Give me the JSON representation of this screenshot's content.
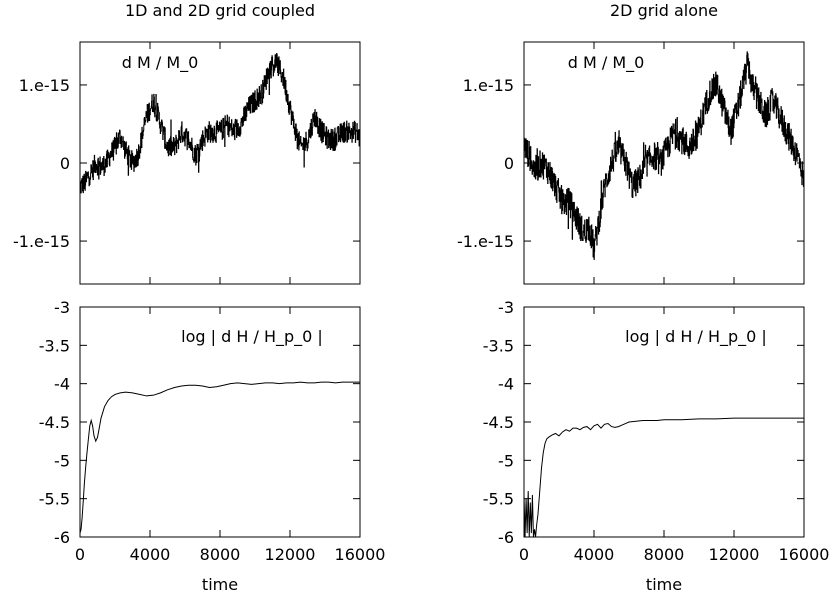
{
  "chart_data": [
    {
      "type": "line",
      "column_title": "1D and 2D grid coupled",
      "title": "d M / M_0",
      "xlabel": "",
      "ylabel": "",
      "xlim": [
        0,
        16000
      ],
      "ylim": [
        -1.55e-15,
        1.55e-15
      ],
      "x_ticks": [
        0,
        4000,
        8000,
        12000,
        16000
      ],
      "y_ticks": [
        {
          "value": 1e-15,
          "label": "1.e-15"
        },
        {
          "value": 0,
          "label": "0"
        },
        {
          "value": -1e-15,
          "label": "-1.e-15"
        }
      ],
      "show_x_tick_labels": false,
      "series": [
        {
          "style": "noisy",
          "noise": 1.4e-16,
          "x": [
            0,
            300,
            500,
            700,
            900,
            1200,
            1500,
            1700,
            2000,
            2300,
            2600,
            3000,
            3300,
            3500,
            3800,
            4200,
            4600,
            5000,
            5400,
            5800,
            6200,
            6600,
            7000,
            7300,
            7600,
            8000,
            8400,
            8800,
            9200,
            9600,
            10000,
            10400,
            10800,
            11200,
            11600,
            11900,
            12200,
            12600,
            13000,
            13400,
            13800,
            14200,
            14600,
            15000,
            15400,
            15800,
            16000
          ],
          "y": [
            -3e-16,
            -2.5e-16,
            -1.5e-16,
            -1e-16,
            0,
            -5e-17,
            0,
            1e-16,
            2e-16,
            3.5e-16,
            1.5e-16,
            0,
            1e-16,
            3e-16,
            6e-16,
            8e-16,
            5e-16,
            2e-16,
            2e-16,
            4e-16,
            3e-16,
            1e-16,
            3e-16,
            4e-16,
            4e-16,
            4e-16,
            5e-16,
            4e-16,
            5e-16,
            7e-16,
            8e-16,
            9e-16,
            1.2e-15,
            1.3e-15,
            1.1e-15,
            8e-16,
            5e-16,
            2e-16,
            3e-16,
            6e-16,
            4e-16,
            3e-16,
            3e-16,
            4e-16,
            4e-16,
            4e-16,
            3e-16
          ]
        }
      ]
    },
    {
      "type": "line",
      "column_title": "2D grid alone",
      "title": "d M / M_0",
      "xlabel": "",
      "ylabel": "",
      "xlim": [
        0,
        16000
      ],
      "ylim": [
        -1.55e-15,
        1.55e-15
      ],
      "x_ticks": [
        0,
        4000,
        8000,
        12000,
        16000
      ],
      "y_ticks": [
        {
          "value": 1e-15,
          "label": "1.e-15"
        },
        {
          "value": 0,
          "label": "0"
        },
        {
          "value": -1e-15,
          "label": "-1.e-15"
        }
      ],
      "show_x_tick_labels": false,
      "series": [
        {
          "style": "noisy",
          "noise": 1.8e-16,
          "x": [
            0,
            300,
            600,
            1000,
            1400,
            1800,
            2200,
            2600,
            3000,
            3400,
            3700,
            4000,
            4300,
            4600,
            5000,
            5400,
            5800,
            6200,
            6600,
            7000,
            7400,
            7800,
            8200,
            8600,
            9000,
            9400,
            9800,
            10200,
            10600,
            11000,
            11400,
            11800,
            12200,
            12500,
            12800,
            13000,
            13400,
            13800,
            14200,
            14600,
            15000,
            15400,
            15800,
            16000
          ],
          "y": [
            2e-16,
            1e-16,
            -1e-16,
            0,
            -1e-16,
            -3e-16,
            -5e-16,
            -5e-16,
            -7e-16,
            -9e-16,
            -8e-16,
            -1.1e-15,
            -7e-16,
            -3e-16,
            0,
            2e-16,
            0,
            -3e-16,
            -2e-16,
            0,
            1e-16,
            0,
            2e-16,
            4e-16,
            3e-16,
            2e-16,
            3e-16,
            6e-16,
            9e-16,
            1e-15,
            7e-16,
            4e-16,
            7e-16,
            1e-15,
            1.3e-15,
            1e-15,
            8e-16,
            6e-16,
            8e-16,
            6e-16,
            4e-16,
            2e-16,
            0,
            -3e-16
          ]
        }
      ]
    },
    {
      "type": "line",
      "title": "log | d H / H_p_0 |",
      "xlabel": "time",
      "ylabel": "",
      "xlim": [
        0,
        16000
      ],
      "ylim": [
        -6,
        -3
      ],
      "x_ticks": [
        0,
        4000,
        8000,
        12000,
        16000
      ],
      "y_ticks": [
        {
          "value": -3,
          "label": "-3"
        },
        {
          "value": -3.5,
          "label": "-3.5"
        },
        {
          "value": -4,
          "label": "-4"
        },
        {
          "value": -4.5,
          "label": "-4.5"
        },
        {
          "value": -5,
          "label": "-5"
        },
        {
          "value": -5.5,
          "label": "-5.5"
        },
        {
          "value": -6,
          "label": "-6"
        }
      ],
      "show_x_tick_labels": true,
      "series": [
        {
          "style": "smooth",
          "x": [
            0,
            60,
            120,
            180,
            250,
            320,
            400,
            480,
            560,
            640,
            720,
            800,
            900,
            1000,
            1100,
            1200,
            1400,
            1600,
            1800,
            2000,
            2300,
            2600,
            3000,
            3400,
            3800,
            4200,
            4600,
            5000,
            5400,
            5800,
            6200,
            6600,
            7000,
            7400,
            7800,
            8200,
            8600,
            9000,
            9400,
            9800,
            10200,
            10600,
            11000,
            11400,
            11800,
            12200,
            12600,
            13000,
            13400,
            13800,
            14200,
            14600,
            15000,
            15400,
            15800,
            16000
          ],
          "y": [
            -5.95,
            -5.9,
            -5.75,
            -5.55,
            -5.3,
            -5.1,
            -4.9,
            -4.72,
            -4.55,
            -4.48,
            -4.55,
            -4.68,
            -4.75,
            -4.7,
            -4.58,
            -4.45,
            -4.3,
            -4.22,
            -4.17,
            -4.14,
            -4.12,
            -4.11,
            -4.12,
            -4.14,
            -4.16,
            -4.15,
            -4.12,
            -4.08,
            -4.05,
            -4.03,
            -4.02,
            -4.02,
            -4.03,
            -4.05,
            -4.04,
            -4.02,
            -4.0,
            -3.99,
            -4.0,
            -4.01,
            -4.0,
            -3.99,
            -3.99,
            -4.0,
            -3.99,
            -3.99,
            -3.98,
            -3.99,
            -3.99,
            -3.98,
            -3.98,
            -3.99,
            -3.98,
            -3.98,
            -3.98,
            -3.98
          ]
        }
      ]
    },
    {
      "type": "line",
      "title": "log | d H / H_p_0 |",
      "xlabel": "time",
      "ylabel": "",
      "xlim": [
        0,
        16000
      ],
      "ylim": [
        -6,
        -3
      ],
      "x_ticks": [
        0,
        4000,
        8000,
        12000,
        16000
      ],
      "y_ticks": [
        {
          "value": -3,
          "label": "-3"
        },
        {
          "value": -3.5,
          "label": "-3.5"
        },
        {
          "value": -4,
          "label": "-4"
        },
        {
          "value": -4.5,
          "label": "-4.5"
        },
        {
          "value": -5,
          "label": "-5"
        },
        {
          "value": -5.5,
          "label": "-5.5"
        },
        {
          "value": -6,
          "label": "-6"
        }
      ],
      "show_x_tick_labels": true,
      "series": [
        {
          "style": "smooth",
          "x": [
            0,
            60,
            120,
            180,
            240,
            300,
            360,
            420,
            480,
            540,
            600,
            660,
            720,
            800,
            900,
            1000,
            1100,
            1200,
            1300,
            1400,
            1600,
            1800,
            2000,
            2200,
            2400,
            2600,
            2800,
            3000,
            3200,
            3400,
            3600,
            3800,
            4000,
            4200,
            4400,
            4600,
            4800,
            5000,
            5200,
            5400,
            5600,
            5800,
            6000,
            6400,
            6800,
            7200,
            7600,
            8000,
            9000,
            10000,
            11000,
            12000,
            13000,
            14000,
            15000,
            16000
          ],
          "y": [
            -5.45,
            -6.0,
            -5.5,
            -5.95,
            -5.4,
            -6.0,
            -5.55,
            -5.95,
            -5.45,
            -6.0,
            -5.9,
            -6.0,
            -5.85,
            -5.7,
            -5.4,
            -5.1,
            -4.9,
            -4.78,
            -4.72,
            -4.7,
            -4.67,
            -4.65,
            -4.68,
            -4.63,
            -4.6,
            -4.62,
            -4.58,
            -4.58,
            -4.6,
            -4.57,
            -4.56,
            -4.6,
            -4.55,
            -4.53,
            -4.58,
            -4.53,
            -4.52,
            -4.56,
            -4.57,
            -4.56,
            -4.54,
            -4.52,
            -4.5,
            -4.49,
            -4.48,
            -4.48,
            -4.48,
            -4.47,
            -4.47,
            -4.46,
            -4.46,
            -4.45,
            -4.45,
            -4.45,
            -4.45,
            -4.45
          ]
        }
      ]
    }
  ]
}
